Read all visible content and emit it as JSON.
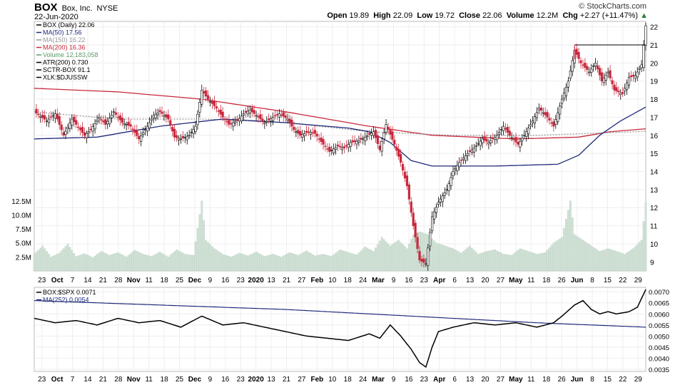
{
  "header": {
    "symbol": "BOX",
    "name": "Box, Inc.",
    "exchange": "NYSE",
    "date": "22-Jun-2020",
    "brand": "© StockCharts.com",
    "open_label": "Open",
    "open": "19.89",
    "high_label": "High",
    "high": "22.09",
    "low_label": "Low",
    "low": "19.72",
    "close_label": "Close",
    "close": "22.06",
    "volume_label": "Volume",
    "volume": "12.2M",
    "chg_label": "Chg",
    "chg": "+2.27 (+11.47%)"
  },
  "colors": {
    "ma50": "#1f2a7a",
    "ma150": "#999999",
    "ma200": "#c8283c",
    "up": "#000000",
    "down": "#c8283c",
    "volume": "#cfe0d4",
    "rs": "#000000",
    "ma252": "#1f2a7a"
  },
  "chart_data": [
    {
      "type": "candlestick",
      "title": "BOX (Daily) 22.06",
      "legend": [
        {
          "label": "BOX (Daily) 22.06",
          "color": "#000000"
        },
        {
          "label": "MA(50) 17.56",
          "color": "#1f2a7a"
        },
        {
          "label": "MA(150) 16.22",
          "color": "#999999"
        },
        {
          "label": "MA(200) 16.36",
          "color": "#c8283c"
        },
        {
          "label": "Volume 12,183,058",
          "color": "#5a9a6a"
        },
        {
          "label": "ATR(200) 0.730",
          "color": "#000000"
        },
        {
          "label": "SCTR-BOX 91.1",
          "color": "#000000"
        },
        {
          "label": "XLK:$DJUSSW",
          "color": "#000000"
        }
      ],
      "y_ticks": [
        9,
        10,
        11,
        12,
        13,
        14,
        15,
        16,
        17,
        18,
        19,
        20,
        21,
        22
      ],
      "ylim": [
        8.5,
        22.3
      ],
      "volume_ticks": [
        "2.5M",
        "5.0M",
        "7.5M",
        "10.0M",
        "12.5M"
      ],
      "volume_tick_values": [
        2.5,
        5.0,
        7.5,
        10.0,
        12.5
      ],
      "x_ticks": [
        "23",
        "Oct",
        "7",
        "14",
        "21",
        "28",
        "Nov",
        "11",
        "18",
        "25",
        "Dec",
        "9",
        "16",
        "23",
        "2020",
        "13",
        "21",
        "27",
        "Feb",
        "10",
        "18",
        "24",
        "Mar",
        "9",
        "16",
        "23",
        "Apr",
        "6",
        "13",
        "20",
        "27",
        "May",
        "11",
        "18",
        "26",
        "Jun",
        "8",
        "15",
        "22",
        "29"
      ],
      "close_path": [
        [
          0,
          17.3
        ],
        [
          6,
          16.8
        ],
        [
          10,
          17.2
        ],
        [
          14,
          16.0
        ],
        [
          18,
          16.9
        ],
        [
          24,
          16.0
        ],
        [
          27,
          16.3
        ],
        [
          31,
          17.0
        ],
        [
          34,
          16.6
        ],
        [
          38,
          17.3
        ],
        [
          42,
          16.7
        ],
        [
          46,
          16.5
        ],
        [
          50,
          15.8
        ],
        [
          54,
          16.5
        ],
        [
          57,
          17.1
        ],
        [
          60,
          17.3
        ],
        [
          64,
          16.9
        ],
        [
          67,
          15.9
        ],
        [
          70,
          15.8
        ],
        [
          74,
          16.0
        ],
        [
          77,
          16.5
        ],
        [
          80,
          18.5
        ],
        [
          83,
          18.0
        ],
        [
          87,
          17.5
        ],
        [
          90,
          17.0
        ],
        [
          93,
          16.6
        ],
        [
          97,
          16.8
        ],
        [
          100,
          17.2
        ],
        [
          103,
          17.4
        ],
        [
          107,
          17.0
        ],
        [
          110,
          16.7
        ],
        [
          114,
          17.0
        ],
        [
          117,
          17.2
        ],
        [
          121,
          16.9
        ],
        [
          124,
          16.3
        ],
        [
          127,
          16.0
        ],
        [
          131,
          16.2
        ],
        [
          134,
          16.1
        ],
        [
          138,
          15.5
        ],
        [
          141,
          15.1
        ],
        [
          145,
          15.4
        ],
        [
          148,
          15.3
        ],
        [
          151,
          15.6
        ],
        [
          155,
          15.7
        ],
        [
          158,
          15.9
        ],
        [
          162,
          16.2
        ],
        [
          165,
          15.2
        ],
        [
          168,
          16.6
        ],
        [
          172,
          15.5
        ],
        [
          175,
          14.5
        ],
        [
          178,
          13.2
        ],
        [
          181,
          11.0
        ],
        [
          184,
          9.1
        ],
        [
          187,
          8.9
        ],
        [
          190,
          11.5
        ],
        [
          193,
          12.3
        ],
        [
          197,
          13.0
        ],
        [
          200,
          14.0
        ],
        [
          203,
          14.5
        ],
        [
          207,
          15.0
        ],
        [
          210,
          15.3
        ],
        [
          214,
          15.8
        ],
        [
          217,
          15.6
        ],
        [
          221,
          16.0
        ],
        [
          224,
          16.5
        ],
        [
          227,
          16.0
        ],
        [
          231,
          15.5
        ],
        [
          234,
          16.0
        ],
        [
          238,
          16.8
        ],
        [
          241,
          17.5
        ],
        [
          245,
          17.0
        ],
        [
          248,
          16.5
        ],
        [
          252,
          18.0
        ],
        [
          255,
          19.0
        ],
        [
          258,
          20.7
        ],
        [
          261,
          20.0
        ],
        [
          265,
          19.5
        ],
        [
          268,
          20.0
        ],
        [
          271,
          19.0
        ],
        [
          274,
          19.5
        ],
        [
          277,
          18.5
        ],
        [
          281,
          18.3
        ],
        [
          284,
          19.2
        ],
        [
          287,
          19.3
        ],
        [
          290,
          19.9
        ],
        [
          292,
          22.06
        ]
      ],
      "ma50_path": [
        [
          0,
          15.8
        ],
        [
          30,
          15.9
        ],
        [
          60,
          16.5
        ],
        [
          90,
          16.9
        ],
        [
          120,
          16.7
        ],
        [
          150,
          16.4
        ],
        [
          160,
          16.2
        ],
        [
          170,
          15.6
        ],
        [
          180,
          14.6
        ],
        [
          190,
          14.3
        ],
        [
          220,
          14.3
        ],
        [
          250,
          14.4
        ],
        [
          260,
          14.9
        ],
        [
          270,
          16.0
        ],
        [
          280,
          16.8
        ],
        [
          292,
          17.56
        ]
      ],
      "ma150_path": [
        [
          0,
          17.3
        ],
        [
          40,
          16.9
        ],
        [
          80,
          16.9
        ],
        [
          120,
          16.7
        ],
        [
          160,
          16.2
        ],
        [
          200,
          16.0
        ],
        [
          240,
          16.0
        ],
        [
          292,
          16.22
        ]
      ],
      "ma200_path": [
        [
          0,
          18.6
        ],
        [
          40,
          18.4
        ],
        [
          80,
          18.0
        ],
        [
          120,
          17.3
        ],
        [
          160,
          16.5
        ],
        [
          190,
          16.0
        ],
        [
          230,
          15.8
        ],
        [
          260,
          15.9
        ],
        [
          275,
          16.2
        ],
        [
          292,
          16.36
        ]
      ],
      "volume_path": [
        [
          0,
          3.0
        ],
        [
          4,
          4.5
        ],
        [
          8,
          2.5
        ],
        [
          12,
          3.2
        ],
        [
          16,
          4.8
        ],
        [
          20,
          2.6
        ],
        [
          24,
          3.1
        ],
        [
          28,
          2.4
        ],
        [
          32,
          3.5
        ],
        [
          36,
          2.8
        ],
        [
          40,
          3.3
        ],
        [
          44,
          2.5
        ],
        [
          48,
          3.7
        ],
        [
          52,
          3.0
        ],
        [
          56,
          2.6
        ],
        [
          60,
          3.4
        ],
        [
          64,
          2.5
        ],
        [
          68,
          3.8
        ],
        [
          72,
          3.0
        ],
        [
          76,
          2.8
        ],
        [
          80,
          12.5
        ],
        [
          82,
          5.5
        ],
        [
          86,
          4.0
        ],
        [
          90,
          3.0
        ],
        [
          94,
          2.5
        ],
        [
          98,
          3.2
        ],
        [
          102,
          2.7
        ],
        [
          106,
          3.4
        ],
        [
          110,
          2.6
        ],
        [
          114,
          3.0
        ],
        [
          118,
          2.5
        ],
        [
          122,
          3.3
        ],
        [
          126,
          2.8
        ],
        [
          130,
          3.6
        ],
        [
          134,
          2.7
        ],
        [
          138,
          3.0
        ],
        [
          142,
          2.6
        ],
        [
          146,
          3.8
        ],
        [
          150,
          3.3
        ],
        [
          154,
          2.9
        ],
        [
          158,
          4.3
        ],
        [
          162,
          3.5
        ],
        [
          166,
          6.0
        ],
        [
          170,
          4.5
        ],
        [
          174,
          5.5
        ],
        [
          178,
          4.0
        ],
        [
          181,
          6.5
        ],
        [
          184,
          7.0
        ],
        [
          188,
          6.5
        ],
        [
          192,
          5.0
        ],
        [
          196,
          4.5
        ],
        [
          200,
          4.0
        ],
        [
          204,
          3.2
        ],
        [
          208,
          4.5
        ],
        [
          212,
          3.0
        ],
        [
          216,
          3.5
        ],
        [
          220,
          3.8
        ],
        [
          224,
          3.0
        ],
        [
          228,
          2.8
        ],
        [
          232,
          4.0
        ],
        [
          236,
          3.5
        ],
        [
          240,
          3.0
        ],
        [
          244,
          3.3
        ],
        [
          248,
          5.0
        ],
        [
          252,
          6.0
        ],
        [
          256,
          12.5
        ],
        [
          258,
          6.5
        ],
        [
          262,
          5.5
        ],
        [
          266,
          4.5
        ],
        [
          270,
          3.5
        ],
        [
          274,
          4.0
        ],
        [
          278,
          3.5
        ],
        [
          282,
          3.0
        ],
        [
          286,
          4.0
        ],
        [
          290,
          5.5
        ],
        [
          292,
          12.2
        ]
      ],
      "breakout_level": 21.0
    },
    {
      "type": "line",
      "legend": [
        {
          "label": "BOX:$SPX 0.0071",
          "color": "#000000"
        },
        {
          "label": "MA(252) 0.0054",
          "color": "#1f2a7a"
        }
      ],
      "y_ticks": [
        "0.0035",
        "0.0040",
        "0.0045",
        "0.0050",
        "0.0055",
        "0.0060",
        "0.0065",
        "0.0070"
      ],
      "y_tick_values": [
        0.0035,
        0.004,
        0.0045,
        0.005,
        0.0055,
        0.006,
        0.0065,
        0.007
      ],
      "ylim": [
        0.0034,
        0.0072
      ],
      "ratio_path": [
        [
          0,
          0.0058
        ],
        [
          10,
          0.0056
        ],
        [
          20,
          0.0057
        ],
        [
          30,
          0.0055
        ],
        [
          40,
          0.0058
        ],
        [
          50,
          0.0056
        ],
        [
          60,
          0.0057
        ],
        [
          70,
          0.0054
        ],
        [
          80,
          0.0059
        ],
        [
          90,
          0.0055
        ],
        [
          100,
          0.0056
        ],
        [
          110,
          0.0054
        ],
        [
          120,
          0.0052
        ],
        [
          130,
          0.005
        ],
        [
          140,
          0.0049
        ],
        [
          150,
          0.0048
        ],
        [
          160,
          0.0051
        ],
        [
          165,
          0.0049
        ],
        [
          170,
          0.0055
        ],
        [
          175,
          0.005
        ],
        [
          180,
          0.0044
        ],
        [
          184,
          0.0038
        ],
        [
          187,
          0.0036
        ],
        [
          190,
          0.0045
        ],
        [
          193,
          0.0052
        ],
        [
          200,
          0.0054
        ],
        [
          210,
          0.0056
        ],
        [
          220,
          0.0055
        ],
        [
          230,
          0.0056
        ],
        [
          240,
          0.0054
        ],
        [
          248,
          0.0056
        ],
        [
          252,
          0.0059
        ],
        [
          258,
          0.0064
        ],
        [
          262,
          0.0066
        ],
        [
          266,
          0.0062
        ],
        [
          270,
          0.006
        ],
        [
          274,
          0.0061
        ],
        [
          278,
          0.006
        ],
        [
          284,
          0.0061
        ],
        [
          288,
          0.0063
        ],
        [
          292,
          0.0071
        ]
      ],
      "ma252_path": [
        [
          0,
          0.0066
        ],
        [
          60,
          0.0064
        ],
        [
          120,
          0.0062
        ],
        [
          180,
          0.0059
        ],
        [
          240,
          0.0056
        ],
        [
          292,
          0.0054
        ]
      ]
    }
  ]
}
